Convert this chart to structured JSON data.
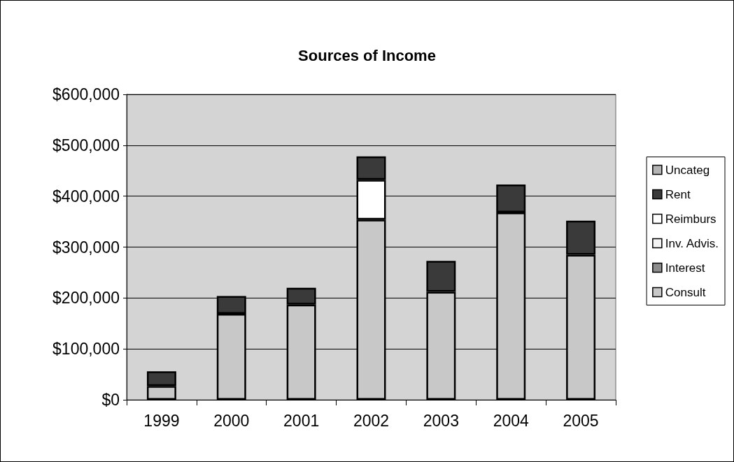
{
  "chart_data": {
    "type": "bar",
    "title": "Sources of Income",
    "stacked": true,
    "categories": [
      "1999",
      "2000",
      "2001",
      "2002",
      "2003",
      "2004",
      "2005"
    ],
    "series": [
      {
        "name": "Consult",
        "color": "#c8c8c8",
        "values": [
          27000,
          169000,
          187000,
          354000,
          212000,
          368000,
          285000
        ]
      },
      {
        "name": "Interest",
        "color": "#8c8c8c",
        "values": [
          null,
          null,
          null,
          null,
          null,
          null,
          null
        ]
      },
      {
        "name": "Inv. Advis.",
        "color": "#f4f4f4",
        "values": [
          null,
          null,
          null,
          null,
          null,
          null,
          null
        ]
      },
      {
        "name": "Reimburs",
        "color": "#ffffff",
        "values": [
          null,
          null,
          null,
          78000,
          null,
          null,
          null
        ]
      },
      {
        "name": "Rent",
        "color": "#3a3a3a",
        "values": [
          29000,
          35000,
          33000,
          46000,
          61000,
          55000,
          67000
        ]
      },
      {
        "name": "Uncateg",
        "color": "#b4b4b4",
        "values": [
          null,
          null,
          null,
          null,
          null,
          null,
          null
        ]
      }
    ],
    "ylim": [
      0,
      600000
    ],
    "yticks": [
      {
        "value": 0,
        "label": "$0"
      },
      {
        "value": 100000,
        "label": "$100,000"
      },
      {
        "value": 200000,
        "label": "$200,000"
      },
      {
        "value": 300000,
        "label": "$300,000"
      },
      {
        "value": 400000,
        "label": "$400,000"
      },
      {
        "value": 500000,
        "label": "$500,000"
      },
      {
        "value": 600000,
        "label": "$600,000"
      }
    ],
    "grid": "y",
    "legend": "right"
  }
}
